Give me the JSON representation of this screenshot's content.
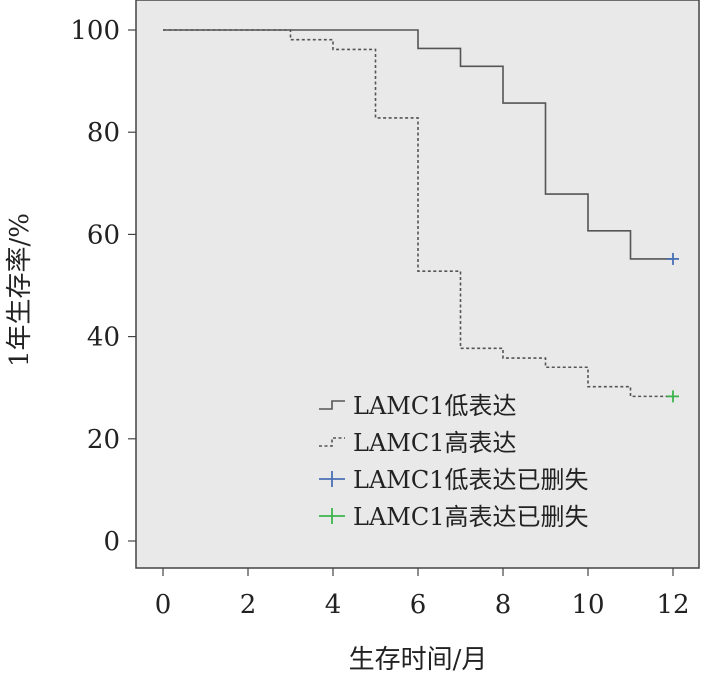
{
  "chart_data": {
    "type": "line",
    "subtype": "kaplan-meier step",
    "xlabel": "生存时间/月",
    "ylabel": "1年生存率/%",
    "xlim": [
      0,
      12
    ],
    "ylim": [
      0,
      100
    ],
    "x_ticks": [
      "0",
      "2",
      "4",
      "6",
      "8",
      "10",
      "12"
    ],
    "y_ticks": [
      "0",
      "20",
      "40",
      "60",
      "80",
      "100"
    ],
    "grid": false,
    "legend_position": "bottom-right",
    "plot_background": "#e9e9e9",
    "series": [
      {
        "name": "LAMC1低表达",
        "line_style": "solid",
        "color": "#555555",
        "points": [
          [
            0,
            100
          ],
          [
            3,
            100
          ],
          [
            4,
            100
          ],
          [
            5,
            100
          ],
          [
            6,
            96.4
          ],
          [
            7,
            92.9
          ],
          [
            8,
            85.7
          ],
          [
            9,
            67.9
          ],
          [
            10,
            60.7
          ],
          [
            11,
            55.2
          ],
          [
            12,
            55.2
          ]
        ]
      },
      {
        "name": "LAMC1高表达",
        "line_style": "dashed",
        "color": "#555555",
        "points": [
          [
            0,
            100
          ],
          [
            3,
            98.1
          ],
          [
            4,
            96.2
          ],
          [
            5,
            82.8
          ],
          [
            6,
            52.8
          ],
          [
            7,
            37.7
          ],
          [
            8,
            35.8
          ],
          [
            9,
            34.0
          ],
          [
            10,
            30.2
          ],
          [
            11,
            28.3
          ],
          [
            12,
            28.3
          ]
        ]
      },
      {
        "name": "LAMC1低表达已删失",
        "marker": "plus",
        "color": "#4a6fb5",
        "points": [
          [
            12,
            55.2
          ]
        ]
      },
      {
        "name": "LAMC1高表达已删失",
        "marker": "plus",
        "color": "#3cb44b",
        "points": [
          [
            12,
            28.3
          ]
        ]
      }
    ]
  }
}
